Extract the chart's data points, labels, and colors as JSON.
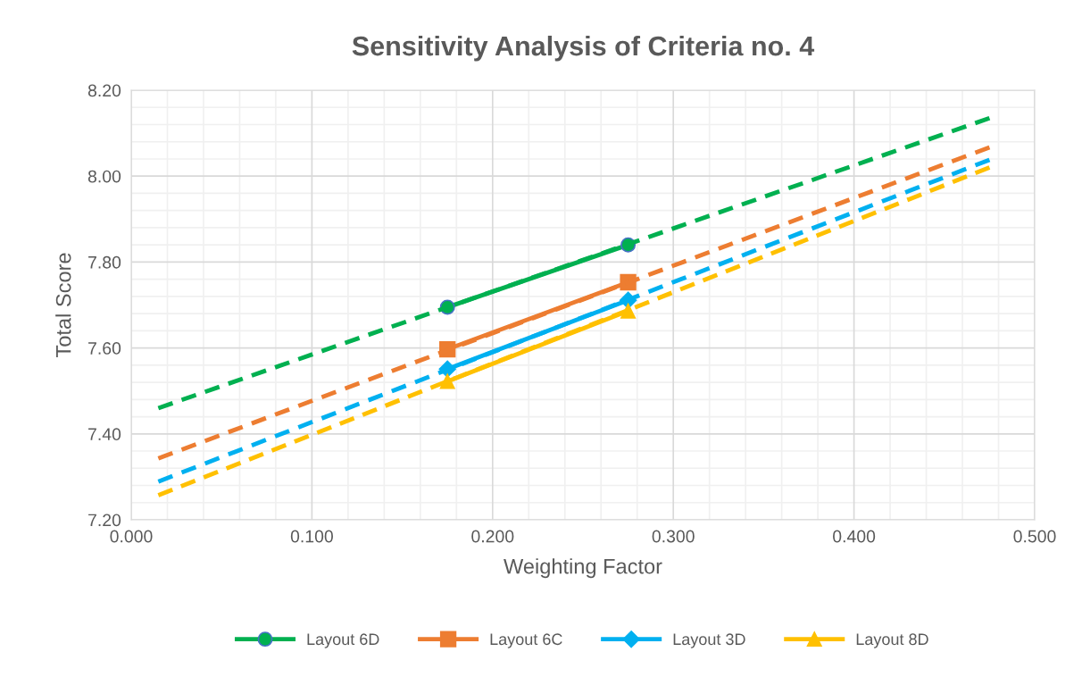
{
  "chart_data": {
    "type": "line",
    "title": "Sensitivity Analysis of Criteria no. 4",
    "xlabel": "Weighting Factor",
    "ylabel": "Total Score",
    "xlim": [
      0,
      0.5
    ],
    "xticks": [
      {
        "value": 0,
        "label": "0.000"
      },
      {
        "value": 0.1,
        "label": "0.100"
      },
      {
        "value": 0.2,
        "label": "0.200"
      },
      {
        "value": 0.3,
        "label": "0.300"
      },
      {
        "value": 0.4,
        "label": "0.400"
      },
      {
        "value": 0.5,
        "label": "0.500"
      }
    ],
    "ylim": [
      7.2,
      8.2
    ],
    "yticks": [
      {
        "value": 7.2,
        "label": "7.20"
      },
      {
        "value": 7.4,
        "label": "7.40"
      },
      {
        "value": 7.6,
        "label": "7.60"
      },
      {
        "value": 7.8,
        "label": "7.80"
      },
      {
        "value": 8.0,
        "label": "8.00"
      },
      {
        "value": 8.2,
        "label": "8.20"
      }
    ],
    "grid": true,
    "legend": "bottom",
    "series": [
      {
        "name": "Layout 6D",
        "color": "#00b050",
        "x": [
          0.175,
          0.275
        ],
        "values": [
          7.695,
          7.84
        ],
        "marker": "circle",
        "line_style": "solid"
      },
      {
        "name": "Layout 6C",
        "color": "#ed7d31",
        "x": [
          0.175,
          0.275
        ],
        "values": [
          7.597,
          7.753
        ],
        "marker": "square",
        "line_style": "solid"
      },
      {
        "name": "Layout 3D",
        "color": "#00b0f0",
        "x": [
          0.175,
          0.275
        ],
        "values": [
          7.551,
          7.711
        ],
        "marker": "diamond",
        "line_style": "solid"
      },
      {
        "name": "Layout 8D",
        "color": "#ffc000",
        "x": [
          0.175,
          0.275
        ],
        "values": [
          7.522,
          7.686
        ],
        "marker": "triangle",
        "line_style": "solid"
      },
      {
        "color": "#00b050",
        "x": [
          0.015,
          0.475
        ],
        "values": [
          7.46,
          8.135
        ],
        "marker": "none",
        "line_style": "dashed"
      },
      {
        "color": "#ed7d31",
        "x": [
          0.015,
          0.475
        ],
        "values": [
          7.343,
          8.067
        ],
        "marker": "none",
        "line_style": "dashed"
      },
      {
        "color": "#00b0f0",
        "x": [
          0.015,
          0.475
        ],
        "values": [
          7.289,
          8.038
        ],
        "marker": "none",
        "line_style": "dashed"
      },
      {
        "color": "#ffc000",
        "x": [
          0.015,
          0.475
        ],
        "values": [
          7.257,
          8.02
        ],
        "marker": "none",
        "line_style": "dashed"
      }
    ]
  }
}
